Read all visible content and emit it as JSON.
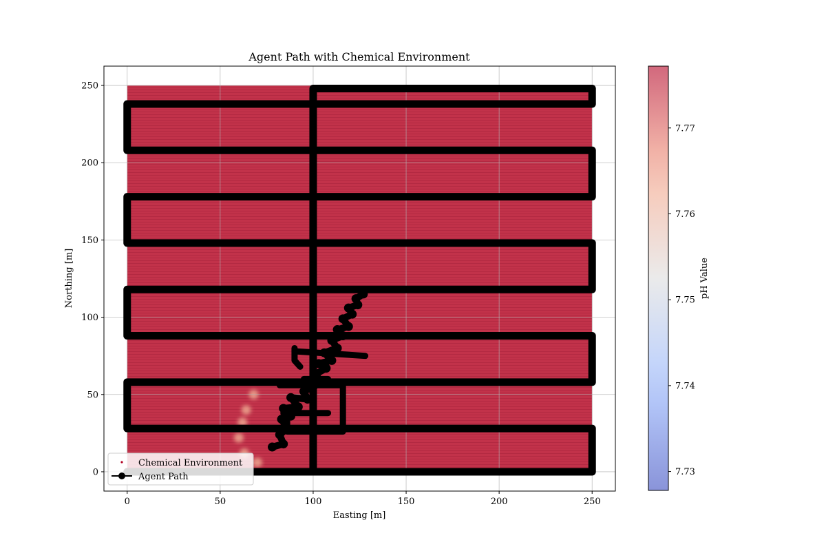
{
  "chart_data": {
    "type": "scatter",
    "title": "Agent Path with Chemical Environment",
    "xlabel": "Easting [m]",
    "ylabel": "Northing [m]",
    "xlim": [
      -12.5,
      262.5
    ],
    "ylim": [
      -12.5,
      262.5
    ],
    "xticks": [
      0,
      50,
      100,
      150,
      200,
      250
    ],
    "yticks": [
      0,
      50,
      100,
      150,
      200,
      250
    ],
    "grid": true,
    "legend_position": "lower-left",
    "legend": [
      {
        "label": "Chemical Environment",
        "marker": "dot",
        "color": "#b40426"
      },
      {
        "label": "Agent Path",
        "marker": "line-circle",
        "color": "#000000"
      }
    ],
    "colorbar": {
      "label": "pH Value",
      "colormap": "coolwarm",
      "range": [
        7.7278,
        7.7772
      ],
      "ticks": [
        7.73,
        7.74,
        7.75,
        7.76,
        7.77
      ]
    },
    "environment": {
      "x_range": [
        0,
        250
      ],
      "y_range": [
        0,
        250
      ],
      "background_ph": 7.777,
      "plume_ph": 7.762,
      "plume_points": [
        [
          68,
          50
        ],
        [
          64,
          40
        ],
        [
          62,
          32
        ],
        [
          60,
          22
        ],
        [
          63,
          12
        ],
        [
          70,
          6
        ]
      ]
    },
    "series": [
      {
        "name": "Agent Path",
        "color": "#000000",
        "lawnmower_path": [
          [
            0,
            0
          ],
          [
            250,
            0
          ],
          [
            250,
            28
          ],
          [
            0,
            28
          ],
          [
            0,
            58
          ],
          [
            250,
            58
          ],
          [
            250,
            88
          ],
          [
            0,
            88
          ],
          [
            0,
            118
          ],
          [
            250,
            118
          ],
          [
            250,
            148
          ],
          [
            0,
            148
          ],
          [
            0,
            178
          ],
          [
            250,
            178
          ],
          [
            250,
            208
          ],
          [
            0,
            208
          ],
          [
            0,
            238
          ],
          [
            100,
            238
          ],
          [
            100,
            248
          ],
          [
            250,
            248
          ],
          [
            250,
            238
          ],
          [
            100,
            238
          ],
          [
            100,
            0
          ]
        ],
        "tracking_path": [
          [
            78,
            16
          ],
          [
            84,
            18
          ],
          [
            82,
            24
          ],
          [
            86,
            28
          ],
          [
            83,
            34
          ],
          [
            88,
            36
          ],
          [
            84,
            41
          ],
          [
            92,
            42
          ],
          [
            88,
            48
          ],
          [
            97,
            47
          ],
          [
            95,
            52
          ],
          [
            100,
            55
          ],
          [
            98,
            58
          ],
          [
            104,
            59
          ],
          [
            101,
            63
          ],
          [
            107,
            67
          ],
          [
            103,
            70
          ],
          [
            110,
            72
          ],
          [
            106,
            77
          ],
          [
            113,
            80
          ],
          [
            110,
            85
          ],
          [
            116,
            88
          ],
          [
            113,
            92
          ],
          [
            119,
            94
          ],
          [
            116,
            99
          ],
          [
            121,
            102
          ],
          [
            119,
            106
          ],
          [
            124,
            108
          ],
          [
            123,
            112
          ],
          [
            127,
            115
          ]
        ],
        "excursions": [
          [
            [
              90,
              78
            ],
            [
              128,
              75
            ]
          ],
          [
            [
              90,
              80
            ],
            [
              90,
              72
            ],
            [
              93,
              68
            ]
          ],
          [
            [
              82,
              56
            ],
            [
              116,
              56
            ],
            [
              116,
              26
            ],
            [
              86,
              26
            ],
            [
              86,
              40
            ]
          ],
          [
            [
              84,
              38
            ],
            [
              108,
              38
            ]
          ],
          [
            [
              95,
              60
            ],
            [
              108,
              60
            ]
          ]
        ]
      }
    ]
  }
}
